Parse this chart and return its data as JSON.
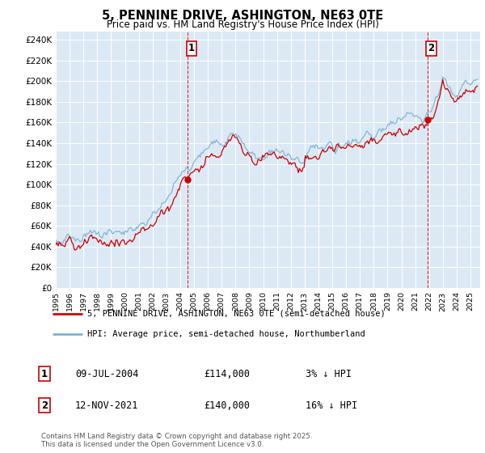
{
  "title": "5, PENNINE DRIVE, ASHINGTON, NE63 0TE",
  "subtitle": "Price paid vs. HM Land Registry's House Price Index (HPI)",
  "ylabel_ticks": [
    "£0",
    "£20K",
    "£40K",
    "£60K",
    "£80K",
    "£100K",
    "£120K",
    "£140K",
    "£160K",
    "£180K",
    "£200K",
    "£220K",
    "£240K"
  ],
  "ytick_values": [
    0,
    20000,
    40000,
    60000,
    80000,
    100000,
    120000,
    140000,
    160000,
    180000,
    200000,
    220000,
    240000
  ],
  "ylim": [
    0,
    248000
  ],
  "sale1_date": "09-JUL-2004",
  "sale1_price": 114000,
  "sale1_label": "3% ↓ HPI",
  "sale1_x": 2004.52,
  "sale2_date": "12-NOV-2021",
  "sale2_price": 140000,
  "sale2_label": "16% ↓ HPI",
  "sale2_x": 2021.87,
  "legend_line1": "5, PENNINE DRIVE, ASHINGTON, NE63 0TE (semi-detached house)",
  "legend_line2": "HPI: Average price, semi-detached house, Northumberland",
  "footer": "Contains HM Land Registry data © Crown copyright and database right 2025.\nThis data is licensed under the Open Government Licence v3.0.",
  "hpi_color": "#7fb3d3",
  "price_color": "#cc0000",
  "bg_color": "#dce9f5",
  "grid_color": "#ffffff",
  "vline_color": "#cc0000",
  "dot_color": "#cc0000"
}
